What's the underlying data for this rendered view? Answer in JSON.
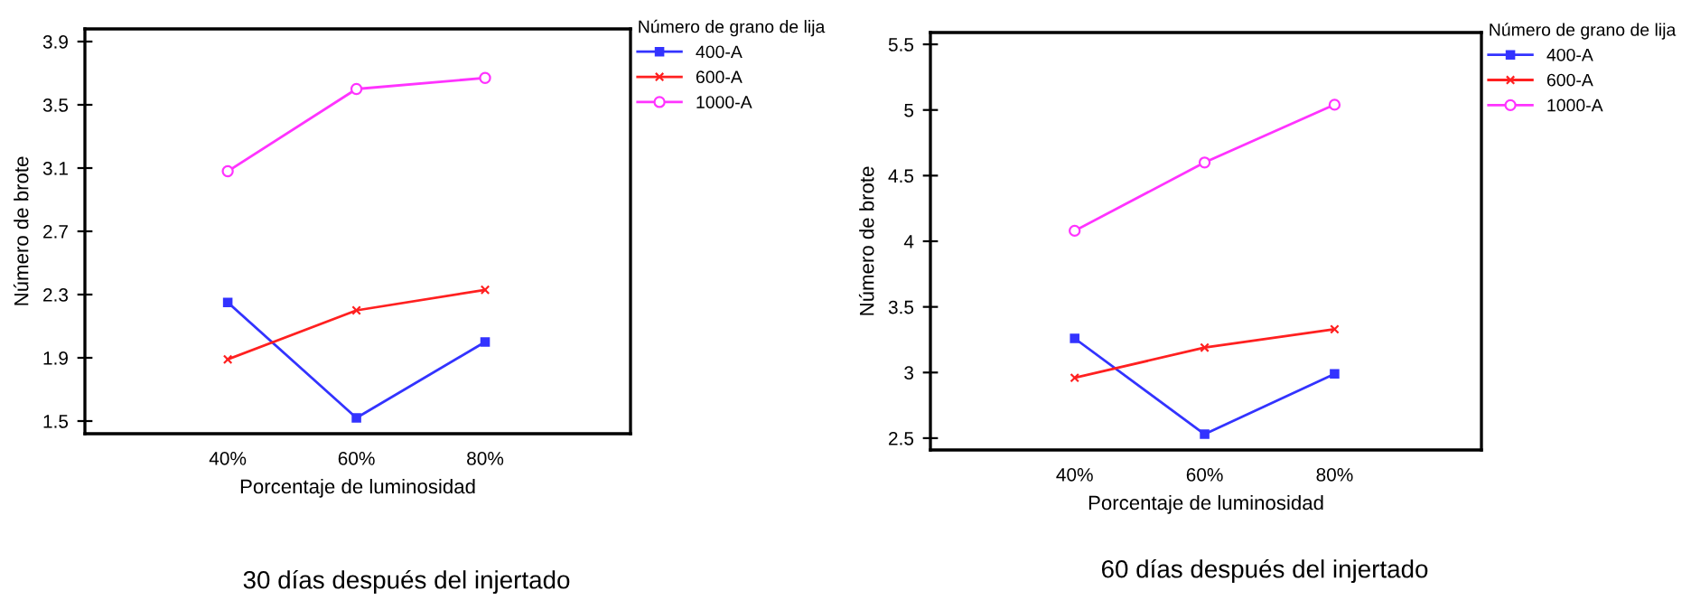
{
  "chart_data": [
    {
      "type": "line",
      "xlabel": "Porcentaje de luminosidad",
      "ylabel": "Número de brote",
      "legend_title": "Número de grano de lija",
      "legend": "right",
      "grid": false,
      "categories": [
        "40%",
        "60%",
        "80%"
      ],
      "ylim": [
        1.42,
        3.98
      ],
      "yticks": [
        1.5,
        1.9,
        2.3,
        2.7,
        3.1,
        3.5,
        3.9
      ],
      "series": [
        {
          "name": "400-A",
          "color": "#3333ff",
          "marker": "square",
          "values": [
            2.25,
            1.52,
            2.0
          ]
        },
        {
          "name": "600-A",
          "color": "#ff2020",
          "marker": "cross",
          "values": [
            1.89,
            2.2,
            2.33
          ]
        },
        {
          "name": "1000-A",
          "color": "#ff33ff",
          "marker": "circle",
          "values": [
            3.08,
            3.6,
            3.67
          ]
        }
      ],
      "annotations": [
        "30 días después del injertado"
      ]
    },
    {
      "type": "line",
      "xlabel": "Porcentaje de luminosidad",
      "ylabel": "Número de brote",
      "legend_title": "Número de grano de lija",
      "legend": "right",
      "grid": false,
      "categories": [
        "40%",
        "60%",
        "80%"
      ],
      "ylim": [
        2.41,
        5.59
      ],
      "yticks": [
        2.5,
        3,
        3.5,
        4,
        4.5,
        5,
        5.5
      ],
      "series": [
        {
          "name": "400-A",
          "color": "#3333ff",
          "marker": "square",
          "values": [
            3.26,
            2.53,
            2.99
          ]
        },
        {
          "name": "600-A",
          "color": "#ff2020",
          "marker": "cross",
          "values": [
            2.96,
            3.19,
            3.33
          ]
        },
        {
          "name": "1000-A",
          "color": "#ff33ff",
          "marker": "circle",
          "values": [
            4.08,
            4.6,
            5.04
          ]
        }
      ],
      "annotations": [
        "60 días después del injertado"
      ]
    }
  ]
}
